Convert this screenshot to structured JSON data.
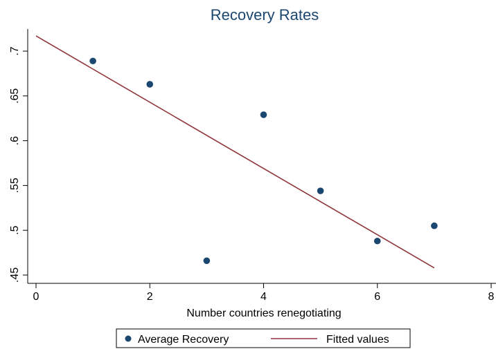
{
  "chart_data": {
    "type": "scatter",
    "title": "Recovery Rates",
    "xlabel": "Number countries renegotiating",
    "ylabel": "",
    "xlim": [
      0,
      8
    ],
    "ylim": [
      0.45,
      0.72
    ],
    "xticks": [
      "0",
      "2",
      "4",
      "6",
      "8"
    ],
    "yticks": [
      ".45",
      ".5",
      ".55",
      ".6",
      ".65",
      ".7"
    ],
    "grid": false,
    "legend_position": "bottom",
    "series": [
      {
        "name": "Average Recovery",
        "type": "scatter",
        "color": "#1a476f",
        "points": [
          {
            "x": 1,
            "y": 0.689
          },
          {
            "x": 2,
            "y": 0.663
          },
          {
            "x": 3,
            "y": 0.466
          },
          {
            "x": 4,
            "y": 0.629
          },
          {
            "x": 5,
            "y": 0.544
          },
          {
            "x": 6,
            "y": 0.488
          },
          {
            "x": 7,
            "y": 0.505
          }
        ]
      },
      {
        "name": "Fitted values",
        "type": "line",
        "color": "#90353b",
        "points": [
          {
            "x": 0,
            "y": 0.717
          },
          {
            "x": 7,
            "y": 0.458
          }
        ]
      }
    ]
  }
}
